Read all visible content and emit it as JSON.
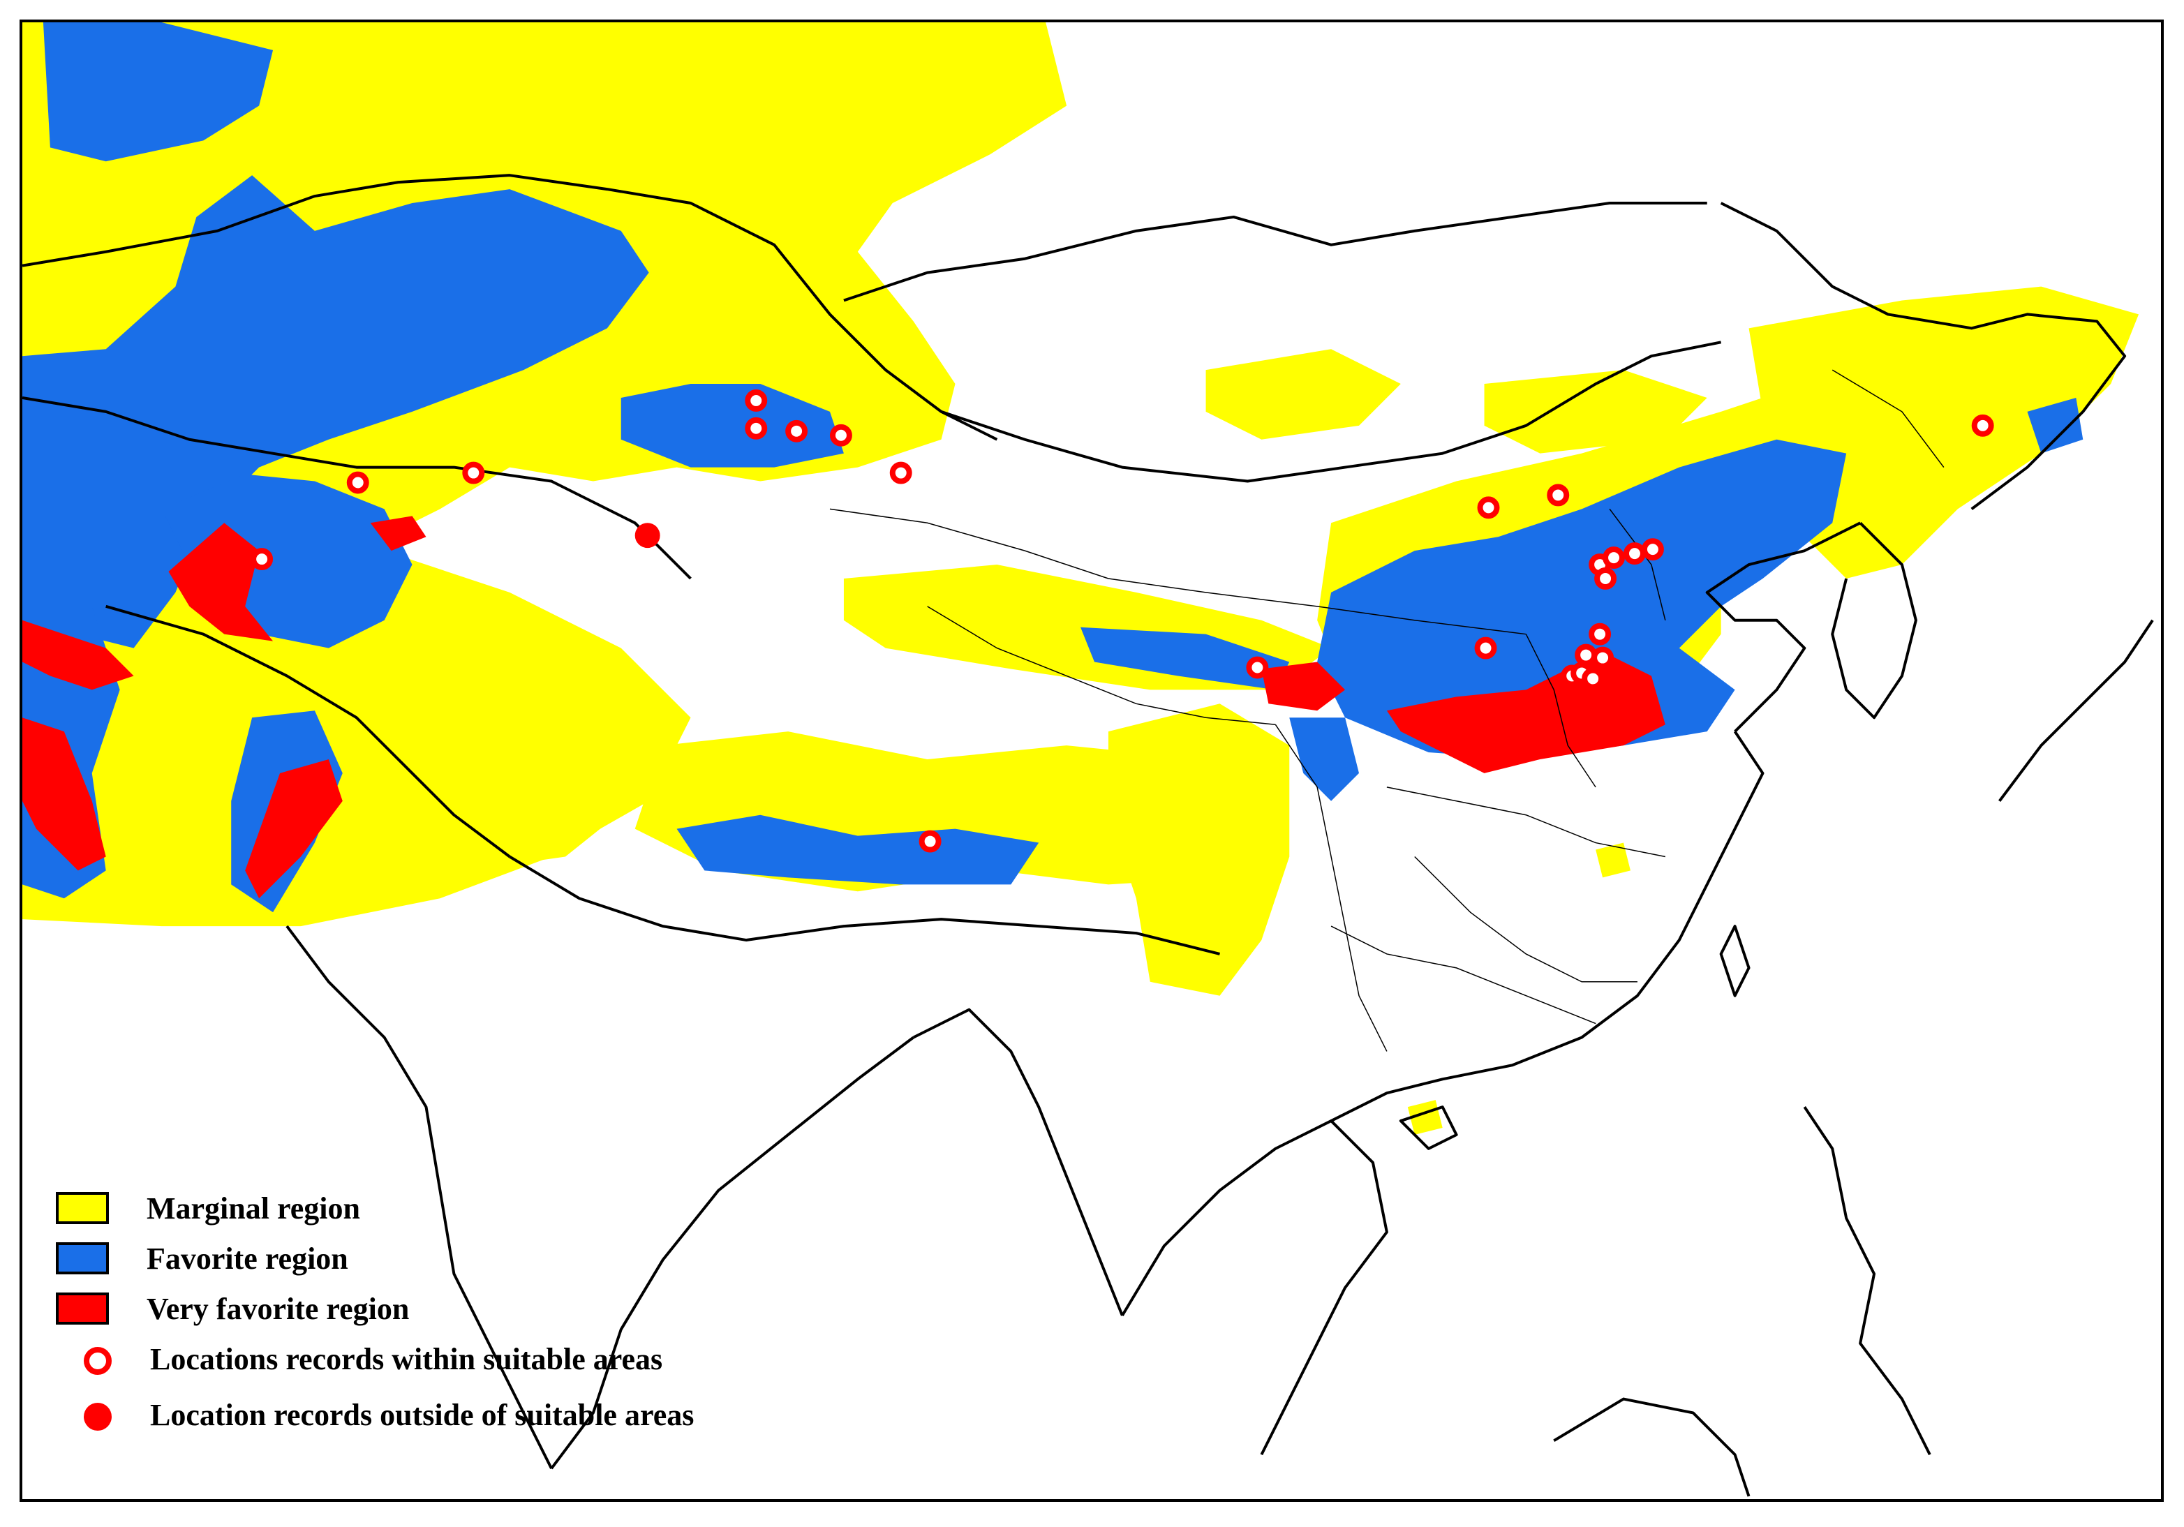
{
  "colors": {
    "marginal": "#ffff00",
    "favorite": "#1a6fe8",
    "very_favorite": "#ff0000",
    "record": "#ff0000",
    "boundary": "#000000"
  },
  "legend": [
    {
      "kind": "swatch",
      "color": "#ffff00",
      "label": "Marginal region"
    },
    {
      "kind": "swatch",
      "color": "#1a6fe8",
      "label": "Favorite region"
    },
    {
      "kind": "swatch",
      "color": "#ff0000",
      "label": "Very favorite region"
    },
    {
      "kind": "ring",
      "color": "#ff0000",
      "label": "Locations records within suitable areas"
    },
    {
      "kind": "dot",
      "color": "#ff0000",
      "label": "Location records outside of suitable areas"
    }
  ],
  "records_within_count": 25,
  "records_outside_count": 1
}
